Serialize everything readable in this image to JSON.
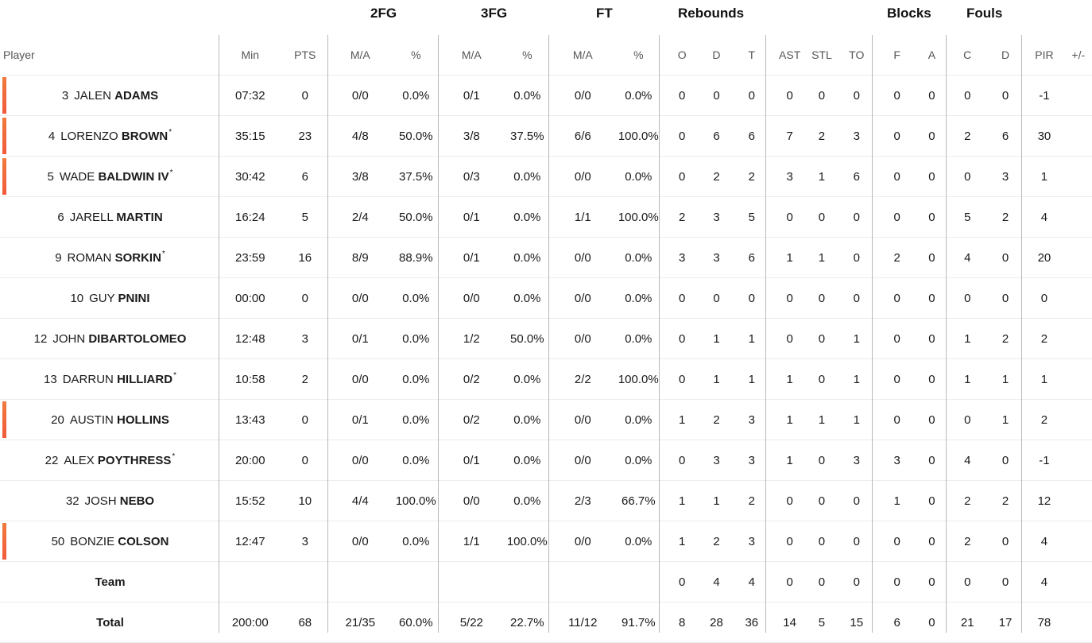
{
  "groups": {
    "fg2": "2FG",
    "fg3": "3FG",
    "ft": "FT",
    "rebounds": "Rebounds",
    "blocks": "Blocks",
    "fouls": "Fouls"
  },
  "columns": [
    "Player",
    "Min",
    "PTS",
    "M/A",
    "%",
    "M/A",
    "%",
    "M/A",
    "%",
    "O",
    "D",
    "T",
    "AST",
    "STL",
    "TO",
    "F",
    "A",
    "C",
    "D",
    "PIR",
    "+/-"
  ],
  "accent_color": "#f26a3a",
  "players": [
    {
      "num": "3",
      "first": "JALEN",
      "last": "ADAMS",
      "starter": false,
      "accent": true,
      "stats": [
        "07:32",
        "0",
        "0/0",
        "0.0%",
        "0/1",
        "0.0%",
        "0/0",
        "0.0%",
        "0",
        "0",
        "0",
        "0",
        "0",
        "0",
        "0",
        "0",
        "0",
        "0",
        "-1",
        ""
      ]
    },
    {
      "num": "4",
      "first": "LORENZO",
      "last": "BROWN",
      "starter": true,
      "accent": true,
      "stats": [
        "35:15",
        "23",
        "4/8",
        "50.0%",
        "3/8",
        "37.5%",
        "6/6",
        "100.0%",
        "0",
        "6",
        "6",
        "7",
        "2",
        "3",
        "0",
        "0",
        "2",
        "6",
        "30",
        ""
      ]
    },
    {
      "num": "5",
      "first": "WADE",
      "last": "BALDWIN IV",
      "starter": true,
      "accent": true,
      "stats": [
        "30:42",
        "6",
        "3/8",
        "37.5%",
        "0/3",
        "0.0%",
        "0/0",
        "0.0%",
        "0",
        "2",
        "2",
        "3",
        "1",
        "6",
        "0",
        "0",
        "0",
        "3",
        "1",
        ""
      ]
    },
    {
      "num": "6",
      "first": "JARELL",
      "last": "MARTIN",
      "starter": false,
      "accent": false,
      "stats": [
        "16:24",
        "5",
        "2/4",
        "50.0%",
        "0/1",
        "0.0%",
        "1/1",
        "100.0%",
        "2",
        "3",
        "5",
        "0",
        "0",
        "0",
        "0",
        "0",
        "5",
        "2",
        "4",
        ""
      ]
    },
    {
      "num": "9",
      "first": "ROMAN",
      "last": "SORKIN",
      "starter": true,
      "accent": false,
      "stats": [
        "23:59",
        "16",
        "8/9",
        "88.9%",
        "0/1",
        "0.0%",
        "0/0",
        "0.0%",
        "3",
        "3",
        "6",
        "1",
        "1",
        "0",
        "2",
        "0",
        "4",
        "0",
        "20",
        ""
      ]
    },
    {
      "num": "10",
      "first": "GUY",
      "last": "PNINI",
      "starter": false,
      "accent": false,
      "stats": [
        "00:00",
        "0",
        "0/0",
        "0.0%",
        "0/0",
        "0.0%",
        "0/0",
        "0.0%",
        "0",
        "0",
        "0",
        "0",
        "0",
        "0",
        "0",
        "0",
        "0",
        "0",
        "0",
        ""
      ]
    },
    {
      "num": "12",
      "first": "JOHN",
      "last": "DIBARTOLOMEO",
      "starter": false,
      "accent": false,
      "stats": [
        "12:48",
        "3",
        "0/1",
        "0.0%",
        "1/2",
        "50.0%",
        "0/0",
        "0.0%",
        "0",
        "1",
        "1",
        "0",
        "0",
        "1",
        "0",
        "0",
        "1",
        "2",
        "2",
        ""
      ]
    },
    {
      "num": "13",
      "first": "DARRUN",
      "last": "HILLIARD",
      "starter": true,
      "accent": false,
      "stats": [
        "10:58",
        "2",
        "0/0",
        "0.0%",
        "0/2",
        "0.0%",
        "2/2",
        "100.0%",
        "0",
        "1",
        "1",
        "1",
        "0",
        "1",
        "0",
        "0",
        "1",
        "1",
        "1",
        ""
      ]
    },
    {
      "num": "20",
      "first": "AUSTIN",
      "last": "HOLLINS",
      "starter": false,
      "accent": true,
      "stats": [
        "13:43",
        "0",
        "0/1",
        "0.0%",
        "0/2",
        "0.0%",
        "0/0",
        "0.0%",
        "1",
        "2",
        "3",
        "1",
        "1",
        "1",
        "0",
        "0",
        "0",
        "1",
        "2",
        ""
      ]
    },
    {
      "num": "22",
      "first": "ALEX",
      "last": "POYTHRESS",
      "starter": true,
      "accent": false,
      "stats": [
        "20:00",
        "0",
        "0/0",
        "0.0%",
        "0/1",
        "0.0%",
        "0/0",
        "0.0%",
        "0",
        "3",
        "3",
        "1",
        "0",
        "3",
        "3",
        "0",
        "4",
        "0",
        "-1",
        ""
      ]
    },
    {
      "num": "32",
      "first": "JOSH",
      "last": "NEBO",
      "starter": false,
      "accent": false,
      "stats": [
        "15:52",
        "10",
        "4/4",
        "100.0%",
        "0/0",
        "0.0%",
        "2/3",
        "66.7%",
        "1",
        "1",
        "2",
        "0",
        "0",
        "0",
        "1",
        "0",
        "2",
        "2",
        "12",
        ""
      ]
    },
    {
      "num": "50",
      "first": "BONZIE",
      "last": "COLSON",
      "starter": false,
      "accent": true,
      "stats": [
        "12:47",
        "3",
        "0/0",
        "0.0%",
        "1/1",
        "100.0%",
        "0/0",
        "0.0%",
        "1",
        "2",
        "3",
        "0",
        "0",
        "0",
        "0",
        "0",
        "2",
        "0",
        "4",
        ""
      ]
    }
  ],
  "team": {
    "label": "Team",
    "stats": [
      "",
      "",
      "",
      "",
      "",
      "",
      "",
      "",
      "0",
      "4",
      "4",
      "0",
      "0",
      "0",
      "0",
      "0",
      "0",
      "0",
      "4",
      ""
    ]
  },
  "total": {
    "label": "Total",
    "stats": [
      "200:00",
      "68",
      "21/35",
      "60.0%",
      "5/22",
      "22.7%",
      "11/12",
      "91.7%",
      "8",
      "28",
      "36",
      "14",
      "5",
      "15",
      "6",
      "0",
      "21",
      "17",
      "78",
      ""
    ]
  }
}
